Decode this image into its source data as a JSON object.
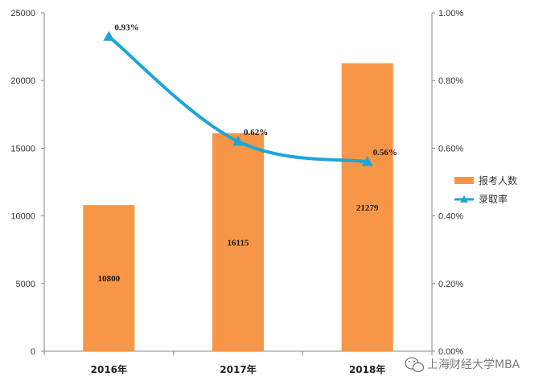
{
  "chart_data": {
    "type": "bar+line",
    "categories": [
      "2016年",
      "2017年",
      "2018年"
    ],
    "bar_series": {
      "name": "报考人数",
      "values": [
        10800,
        16115,
        21279
      ],
      "color": "#F79646"
    },
    "line_series": {
      "name": "录取率",
      "values": [
        0.93,
        0.62,
        0.56
      ],
      "labels": [
        "0.93%",
        "0.62%",
        "0.56%"
      ],
      "color": "#1BA6D6",
      "marker": "triangle"
    },
    "y_left": {
      "range": [
        0,
        25000
      ],
      "ticks": [
        "0",
        "5000",
        "10000",
        "15000",
        "20000",
        "25000"
      ]
    },
    "y_right": {
      "range": [
        0,
        1.0
      ],
      "ticks": [
        "0.00%",
        "0.20%",
        "0.40%",
        "0.60%",
        "0.80%",
        "1.00%"
      ]
    },
    "grid": false,
    "legend_position": "right"
  },
  "watermark": {
    "text": "上海财经大学MBA",
    "icon": "wechat-icon"
  }
}
